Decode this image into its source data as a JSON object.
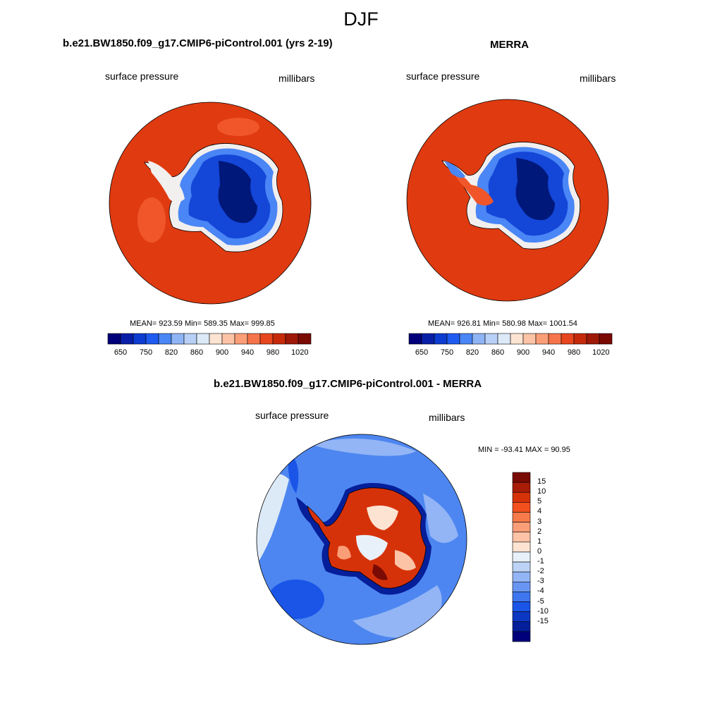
{
  "page": {
    "title": "DJF"
  },
  "panels": [
    {
      "title": "b.e21.BW1850.f09_g17.CMIP6-piControl.001 (yrs 2-19)",
      "left_label": "surface pressure",
      "right_label": "millibars",
      "stats": "MEAN= 923.59  Min= 589.35  Max= 999.85"
    },
    {
      "title": "MERRA",
      "left_label": "surface pressure",
      "right_label": "millibars",
      "stats": "MEAN= 926.81  Min= 580.98  Max= 1001.54"
    },
    {
      "title": "b.e21.BW1850.f09_g17.CMIP6-piControl.001 - MERRA",
      "left_label": "surface pressure",
      "right_label": "millibars",
      "stats": "MIN = -93.41 MAX =  90.95"
    }
  ],
  "horizontal_colorbar": {
    "tick_labels": [
      "650",
      "750",
      "820",
      "860",
      "900",
      "940",
      "980",
      "1020"
    ],
    "colors": [
      "#00007a",
      "#0a1fa8",
      "#0d3dd0",
      "#1e5bf0",
      "#4a86f5",
      "#8fb4f5",
      "#b8d0f5",
      "#dceaf8",
      "#fde4d2",
      "#fcc3a6",
      "#fa9e78",
      "#f5744a",
      "#e8461e",
      "#c62a0a",
      "#9e1808",
      "#7a0a04"
    ]
  },
  "vertical_colorbar": {
    "tick_labels": [
      "15",
      "10",
      "5",
      "4",
      "3",
      "2",
      "1",
      "0",
      "-1",
      "-2",
      "-3",
      "-4",
      "-5",
      "-10",
      "-15"
    ],
    "colors": [
      "#7a0a04",
      "#a81c08",
      "#d6320a",
      "#f2501e",
      "#f77a4a",
      "#fa9e78",
      "#fcc3a6",
      "#fde4d2",
      "#e8f0fa",
      "#bcd3f5",
      "#93b5f5",
      "#6a96f3",
      "#3f76f0",
      "#1a55e8",
      "#0c37c2",
      "#051e9a",
      "#00007a"
    ]
  },
  "colors": {
    "field_high": "#e03a10",
    "ice_low": "#1446d8",
    "ice_deep": "#00187a",
    "diff_base": "#4d86f0"
  }
}
